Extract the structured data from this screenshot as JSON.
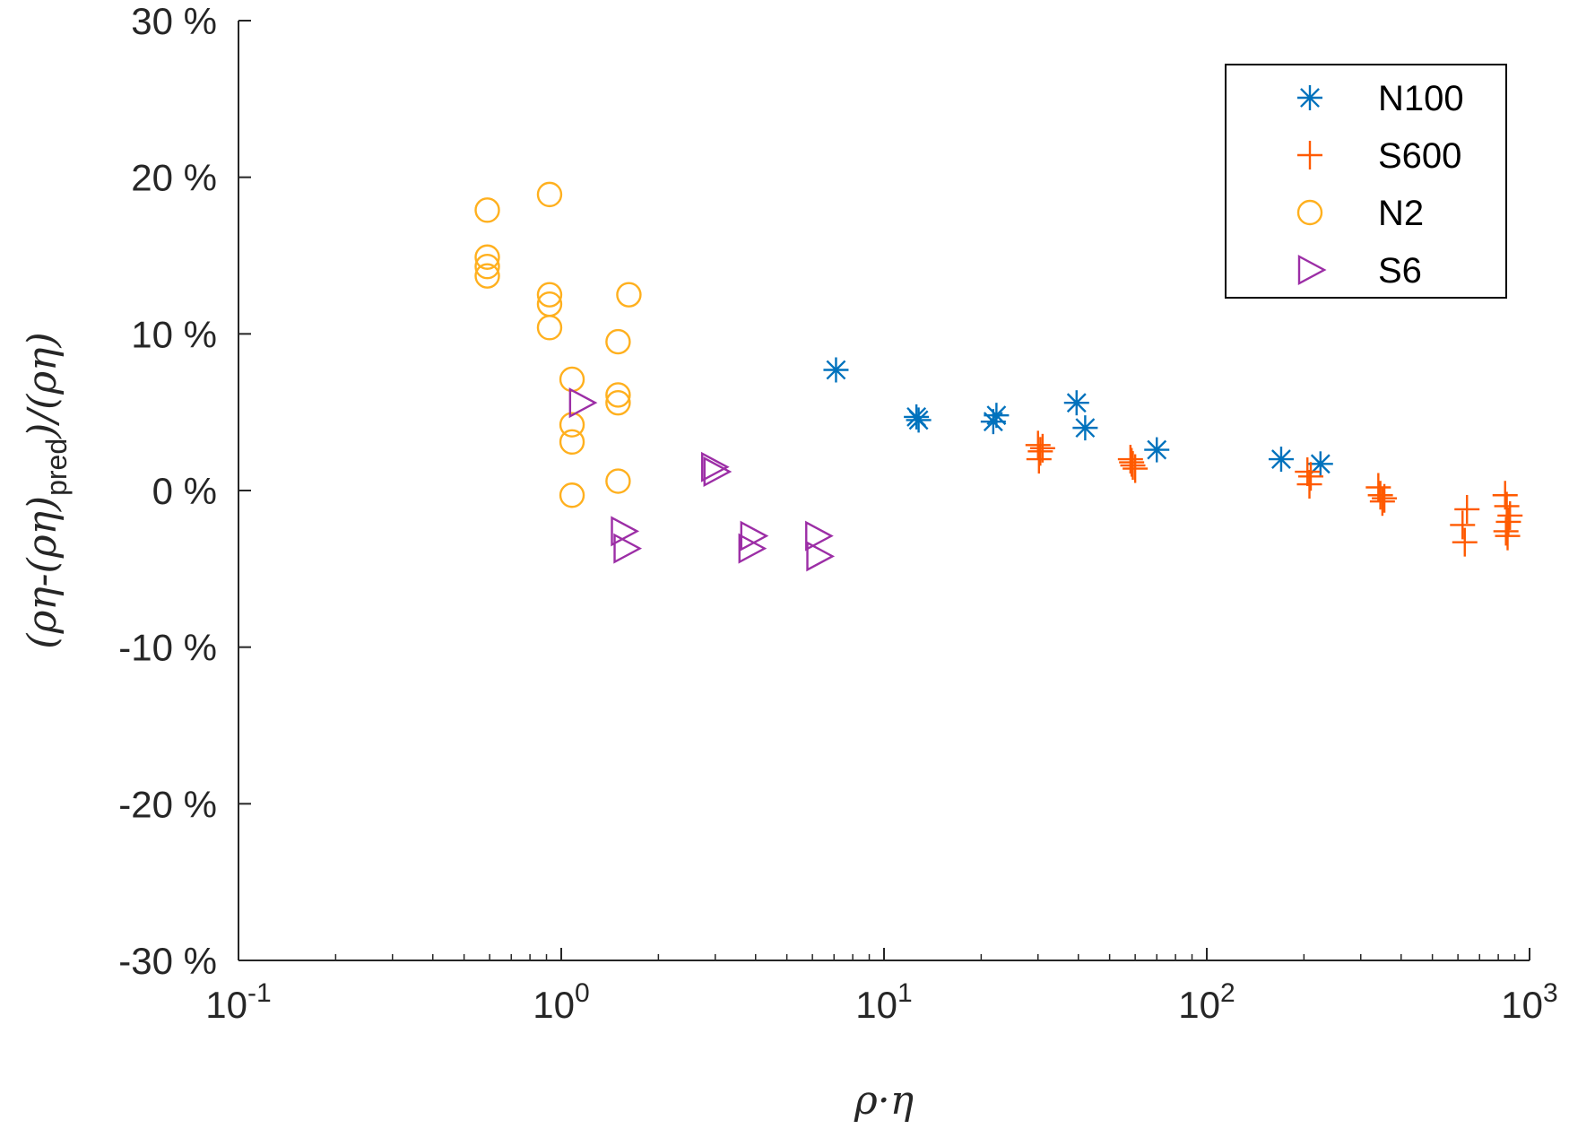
{
  "chart_data": {
    "type": "scatter",
    "x_scale": "log",
    "xlim": [
      0.1,
      1000
    ],
    "ylim": [
      -30,
      30
    ],
    "xlabel": "ρ·η",
    "ylabel": "(ρη-(ρη)pred)/(ρη)",
    "ylabel_parts": {
      "pre": "(ρη-(ρη)",
      "sub": "pred",
      "post": ")/(ρη)"
    },
    "x_ticks": [
      {
        "value": 0.1,
        "base": "10",
        "exp": "-1"
      },
      {
        "value": 1,
        "base": "10",
        "exp": "0"
      },
      {
        "value": 10,
        "base": "10",
        "exp": "1"
      },
      {
        "value": 100,
        "base": "10",
        "exp": "2"
      },
      {
        "value": 1000,
        "base": "10",
        "exp": "3"
      }
    ],
    "y_ticks": [
      {
        "value": 30,
        "label": "30 %"
      },
      {
        "value": 20,
        "label": "20 %"
      },
      {
        "value": 10,
        "label": "10 %"
      },
      {
        "value": 0,
        "label": "0 %"
      },
      {
        "value": -10,
        "label": "-10 %"
      },
      {
        "value": -20,
        "label": "-20 %"
      },
      {
        "value": -30,
        "label": "-30 %"
      }
    ],
    "grid": false,
    "legend_position": "top-right",
    "series": [
      {
        "name": "N100",
        "marker": "asterisk",
        "color": "#0072bd",
        "points": [
          [
            7.1,
            7.7
          ],
          [
            12.6,
            4.7
          ],
          [
            12.8,
            4.5
          ],
          [
            21.8,
            4.4
          ],
          [
            22.3,
            4.8
          ],
          [
            39.5,
            5.6
          ],
          [
            42.0,
            4.0
          ],
          [
            70.0,
            2.6
          ],
          [
            170.0,
            2.0
          ],
          [
            225.0,
            1.7
          ]
        ]
      },
      {
        "name": "S600",
        "marker": "plus",
        "color": "#ff5a00",
        "points": [
          [
            30.0,
            2.9
          ],
          [
            30.5,
            2.5
          ],
          [
            31.0,
            2.7
          ],
          [
            30.2,
            2.0
          ],
          [
            58.0,
            2.0
          ],
          [
            59.0,
            1.6
          ],
          [
            60.0,
            1.4
          ],
          [
            58.5,
            1.8
          ],
          [
            205.0,
            1.2
          ],
          [
            210.0,
            0.9
          ],
          [
            208.0,
            0.4
          ],
          [
            340.0,
            0.2
          ],
          [
            345.0,
            -0.3
          ],
          [
            350.0,
            -0.7
          ],
          [
            355.0,
            -0.5
          ],
          [
            620.0,
            -2.2
          ],
          [
            640.0,
            -1.2
          ],
          [
            630.0,
            -3.3
          ],
          [
            840.0,
            -0.3
          ],
          [
            850.0,
            -1.0
          ],
          [
            860.0,
            -2.0
          ],
          [
            845.0,
            -2.6
          ],
          [
            870.0,
            -1.6
          ],
          [
            855.0,
            -2.9
          ]
        ]
      },
      {
        "name": "N2",
        "marker": "circle",
        "color": "#ffb01e",
        "points": [
          [
            0.59,
            17.9
          ],
          [
            0.92,
            18.9
          ],
          [
            0.59,
            14.9
          ],
          [
            0.59,
            14.3
          ],
          [
            0.59,
            13.7
          ],
          [
            0.92,
            12.5
          ],
          [
            0.92,
            11.9
          ],
          [
            0.92,
            10.4
          ],
          [
            1.62,
            12.5
          ],
          [
            1.5,
            9.5
          ],
          [
            1.08,
            7.1
          ],
          [
            1.5,
            6.1
          ],
          [
            1.5,
            5.6
          ],
          [
            1.08,
            4.2
          ],
          [
            1.08,
            3.1
          ],
          [
            1.08,
            -0.3
          ],
          [
            1.5,
            0.6
          ]
        ]
      },
      {
        "name": "S6",
        "marker": "triangle-right",
        "color": "#9c2ea6",
        "points": [
          [
            1.15,
            5.6
          ],
          [
            2.95,
            1.5
          ],
          [
            3.0,
            1.2
          ],
          [
            1.55,
            -2.6
          ],
          [
            1.58,
            -3.7
          ],
          [
            3.9,
            -2.9
          ],
          [
            3.85,
            -3.7
          ],
          [
            6.2,
            -2.9
          ],
          [
            6.25,
            -4.2
          ]
        ]
      }
    ]
  },
  "legend": {
    "entries": [
      "N100",
      "S600",
      "N2",
      "S6"
    ]
  }
}
